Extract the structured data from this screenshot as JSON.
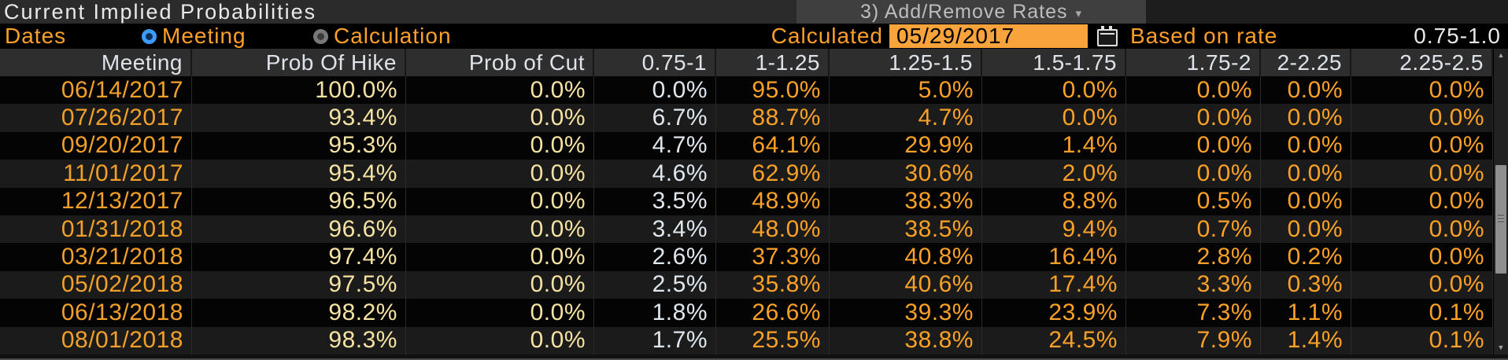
{
  "title": "Current Implied Probabilities",
  "toolbar": {
    "add_remove_button": "3) Add/Remove Rates",
    "dropdown_arrow": "▾"
  },
  "controls": {
    "dates_label": "Dates",
    "radio_meeting_label": "Meeting",
    "radio_calculation_label": "Calculation",
    "radio_selected": "Meeting",
    "calculated_label": "Calculated",
    "calculated_date_value": "05/29/2017",
    "based_on_rate_label": "Based on rate",
    "based_on_rate_value": "0.75-1.0"
  },
  "scrollbar": {
    "up_arrow": "▲",
    "down_arrow": "▼"
  },
  "table": {
    "columns": [
      "Meeting",
      "Prob Of Hike",
      "Prob of Cut",
      "0.75-1",
      "1-1.25",
      "1.25-1.5",
      "1.5-1.75",
      "1.75-2",
      "2-2.25",
      "2.25-2.5"
    ],
    "rows": [
      {
        "meeting": "06/14/2017",
        "values": [
          "100.0%",
          "0.0%",
          "0.0%",
          "95.0%",
          "5.0%",
          "0.0%",
          "0.0%",
          "0.0%",
          "0.0%"
        ]
      },
      {
        "meeting": "07/26/2017",
        "values": [
          "93.4%",
          "0.0%",
          "6.7%",
          "88.7%",
          "4.7%",
          "0.0%",
          "0.0%",
          "0.0%",
          "0.0%"
        ]
      },
      {
        "meeting": "09/20/2017",
        "values": [
          "95.3%",
          "0.0%",
          "4.7%",
          "64.1%",
          "29.9%",
          "1.4%",
          "0.0%",
          "0.0%",
          "0.0%"
        ]
      },
      {
        "meeting": "11/01/2017",
        "values": [
          "95.4%",
          "0.0%",
          "4.6%",
          "62.9%",
          "30.6%",
          "2.0%",
          "0.0%",
          "0.0%",
          "0.0%"
        ]
      },
      {
        "meeting": "12/13/2017",
        "values": [
          "96.5%",
          "0.0%",
          "3.5%",
          "48.9%",
          "38.3%",
          "8.8%",
          "0.5%",
          "0.0%",
          "0.0%"
        ]
      },
      {
        "meeting": "01/31/2018",
        "values": [
          "96.6%",
          "0.0%",
          "3.4%",
          "48.0%",
          "38.5%",
          "9.4%",
          "0.7%",
          "0.0%",
          "0.0%"
        ]
      },
      {
        "meeting": "03/21/2018",
        "values": [
          "97.4%",
          "0.0%",
          "2.6%",
          "37.3%",
          "40.8%",
          "16.4%",
          "2.8%",
          "0.2%",
          "0.0%"
        ]
      },
      {
        "meeting": "05/02/2018",
        "values": [
          "97.5%",
          "0.0%",
          "2.5%",
          "35.8%",
          "40.6%",
          "17.4%",
          "3.3%",
          "0.3%",
          "0.0%"
        ]
      },
      {
        "meeting": "06/13/2018",
        "values": [
          "98.2%",
          "0.0%",
          "1.8%",
          "26.6%",
          "39.3%",
          "23.9%",
          "7.3%",
          "1.1%",
          "0.1%"
        ]
      },
      {
        "meeting": "08/01/2018",
        "values": [
          "98.3%",
          "0.0%",
          "1.7%",
          "25.5%",
          "38.8%",
          "24.5%",
          "7.9%",
          "1.4%",
          "0.1%"
        ]
      }
    ]
  },
  "colors": {
    "accent_orange": "#fba127",
    "pale_yellow": "#f6e3a2",
    "white_value": "#dfe7ee",
    "date_field_bg": "#f9a33c",
    "radio_selected_blue": "#3d9bff",
    "header_bg": "#2e2e2e",
    "stripe_row_bg": "#1b1b1b",
    "titlebar_bg": "#2b2b2b",
    "button_bg": "#3f3f3f"
  }
}
